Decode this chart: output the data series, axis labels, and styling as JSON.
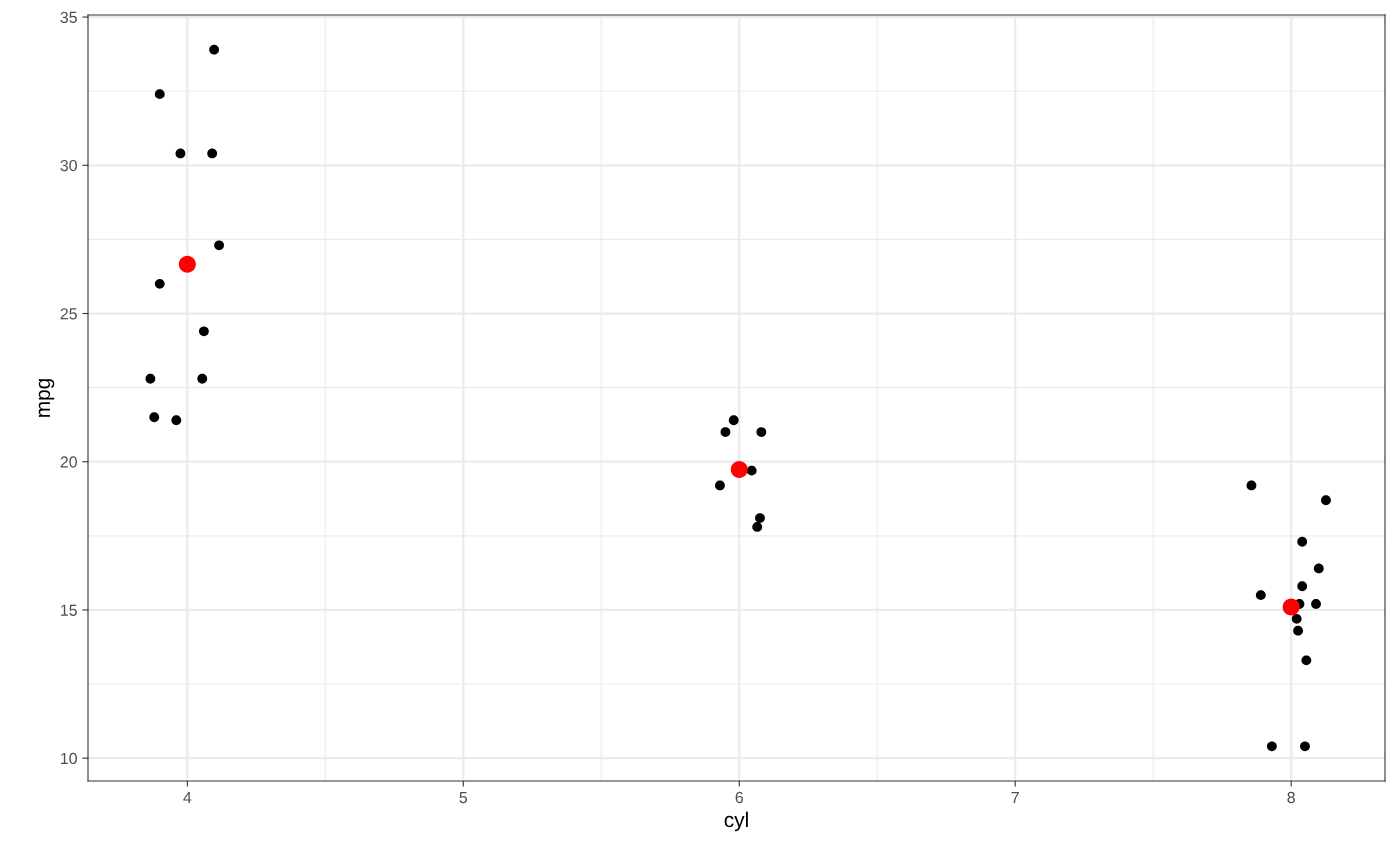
{
  "chart_data": {
    "type": "scatter",
    "xlabel": "cyl",
    "ylabel": "mpg",
    "xlim": [
      3.64,
      8.34
    ],
    "ylim": [
      9.23,
      35.07
    ],
    "xticks": [
      4,
      5,
      6,
      7,
      8
    ],
    "yticks": [
      10,
      15,
      20,
      25,
      30,
      35
    ],
    "grid": true,
    "marker": "circle",
    "series": [
      {
        "color": "#000000",
        "x": [
          4.097,
          3.9,
          3.975,
          4.09,
          4.115,
          3.9,
          4.06,
          3.866,
          4.054,
          3.88,
          3.96,
          5.95,
          5.98,
          6.08,
          6.045,
          5.93,
          6.075,
          6.065,
          7.856,
          8.126,
          8.04,
          8.1,
          8.04,
          7.89,
          8.09,
          8.03,
          8.02,
          8.025,
          8.055,
          7.93,
          8.05
        ],
        "values": [
          33.9,
          32.4,
          30.4,
          30.4,
          27.3,
          26.0,
          24.4,
          22.8,
          22.8,
          21.5,
          21.4,
          21.0,
          21.4,
          21.0,
          19.7,
          19.2,
          18.1,
          17.8,
          19.2,
          18.7,
          17.3,
          16.4,
          15.8,
          15.5,
          15.2,
          15.2,
          14.7,
          14.3,
          13.3,
          10.4,
          10.4
        ]
      },
      {
        "color": "#ff0000",
        "x": [
          4,
          6,
          8
        ],
        "values": [
          26.66,
          19.74,
          15.1
        ]
      }
    ]
  }
}
